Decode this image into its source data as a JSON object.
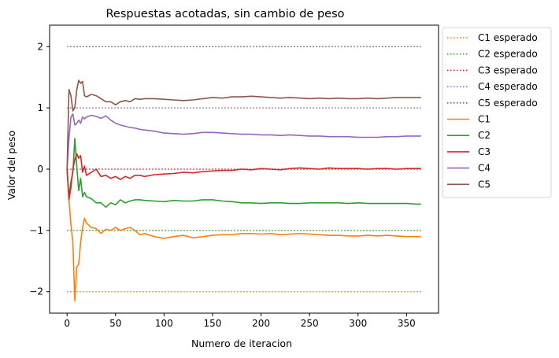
{
  "chart_data": {
    "type": "line",
    "title": "Respuestas acotadas, sin cambio de peso",
    "xlabel": "Numero de iteracion",
    "ylabel": "Valor del peso",
    "xlim": [
      -18,
      383
    ],
    "ylim": [
      -2.35,
      2.35
    ],
    "x_ticks": [
      0,
      50,
      100,
      150,
      200,
      250,
      300,
      350
    ],
    "y_ticks": [
      -2,
      -1,
      0,
      1,
      2
    ],
    "grid": false,
    "legend_position": "outside-top-right",
    "colors": {
      "C1": "#ff7f0e",
      "C2": "#2ca02c",
      "C3": "#d62728",
      "C4": "#9467bd",
      "C5": "#8c564b"
    },
    "expected": [
      {
        "name": "C1 esperado",
        "color": "#ff7f0e",
        "x": [
          0,
          365
        ],
        "values": [
          -2,
          -2
        ]
      },
      {
        "name": "C2 esperado",
        "color": "#2ca02c",
        "x": [
          0,
          365
        ],
        "values": [
          -1,
          -1
        ]
      },
      {
        "name": "C3 esperado",
        "color": "#d62728",
        "x": [
          0,
          365
        ],
        "values": [
          0,
          0
        ]
      },
      {
        "name": "C4 esperado",
        "color": "#9467bd",
        "x": [
          0,
          365
        ],
        "values": [
          1,
          1
        ]
      },
      {
        "name": "C5 esperado",
        "color": "#8c564b",
        "x": [
          0,
          365
        ],
        "values": [
          2,
          2
        ]
      }
    ],
    "series": [
      {
        "name": "C1",
        "color": "#ff7f0e",
        "x": [
          0,
          2,
          4,
          6,
          8,
          10,
          12,
          14,
          16,
          18,
          20,
          25,
          30,
          35,
          40,
          45,
          50,
          55,
          60,
          65,
          70,
          75,
          80,
          90,
          100,
          110,
          120,
          130,
          140,
          150,
          160,
          170,
          180,
          190,
          200,
          210,
          220,
          230,
          240,
          250,
          260,
          270,
          280,
          290,
          300,
          310,
          320,
          330,
          340,
          350,
          360,
          365
        ],
        "values": [
          0.0,
          -0.5,
          -0.9,
          -1.2,
          -2.15,
          -1.6,
          -1.55,
          -1.2,
          -0.95,
          -0.8,
          -0.88,
          -0.95,
          -0.97,
          -1.05,
          -0.98,
          -1.0,
          -0.95,
          -1.0,
          -0.97,
          -0.95,
          -1.0,
          -1.07,
          -1.05,
          -1.1,
          -1.13,
          -1.1,
          -1.08,
          -1.12,
          -1.1,
          -1.08,
          -1.07,
          -1.07,
          -1.05,
          -1.05,
          -1.06,
          -1.05,
          -1.07,
          -1.06,
          -1.05,
          -1.06,
          -1.07,
          -1.08,
          -1.08,
          -1.09,
          -1.09,
          -1.08,
          -1.09,
          -1.08,
          -1.09,
          -1.1,
          -1.1,
          -1.1
        ]
      },
      {
        "name": "C2",
        "color": "#2ca02c",
        "x": [
          0,
          2,
          4,
          6,
          8,
          10,
          12,
          14,
          16,
          18,
          20,
          25,
          30,
          35,
          40,
          45,
          50,
          55,
          60,
          65,
          70,
          75,
          80,
          90,
          100,
          110,
          120,
          130,
          140,
          150,
          160,
          170,
          180,
          190,
          200,
          210,
          220,
          230,
          240,
          250,
          260,
          270,
          280,
          290,
          300,
          310,
          320,
          330,
          340,
          350,
          360,
          365
        ],
        "values": [
          0.0,
          -0.45,
          -0.2,
          -0.05,
          0.5,
          0.05,
          -0.35,
          -0.15,
          -0.45,
          -0.38,
          -0.45,
          -0.48,
          -0.55,
          -0.55,
          -0.62,
          -0.55,
          -0.58,
          -0.5,
          -0.55,
          -0.52,
          -0.5,
          -0.5,
          -0.51,
          -0.52,
          -0.53,
          -0.51,
          -0.52,
          -0.52,
          -0.5,
          -0.5,
          -0.52,
          -0.53,
          -0.55,
          -0.55,
          -0.56,
          -0.55,
          -0.55,
          -0.56,
          -0.56,
          -0.55,
          -0.55,
          -0.55,
          -0.55,
          -0.56,
          -0.55,
          -0.56,
          -0.56,
          -0.56,
          -0.56,
          -0.56,
          -0.57,
          -0.57
        ]
      },
      {
        "name": "C3",
        "color": "#d62728",
        "x": [
          0,
          2,
          4,
          6,
          8,
          10,
          12,
          14,
          16,
          18,
          20,
          25,
          30,
          35,
          40,
          45,
          50,
          55,
          60,
          65,
          70,
          75,
          80,
          90,
          100,
          110,
          120,
          130,
          140,
          150,
          160,
          170,
          180,
          190,
          200,
          210,
          220,
          230,
          240,
          250,
          260,
          270,
          280,
          290,
          300,
          310,
          320,
          330,
          340,
          350,
          360,
          365
        ],
        "values": [
          0.0,
          -0.5,
          -0.3,
          0.0,
          0.15,
          0.25,
          0.18,
          0.22,
          -0.05,
          0.05,
          -0.1,
          -0.05,
          0.0,
          -0.12,
          -0.1,
          -0.15,
          -0.12,
          -0.17,
          -0.12,
          -0.15,
          -0.1,
          -0.1,
          -0.12,
          -0.09,
          -0.08,
          -0.07,
          -0.05,
          -0.06,
          -0.04,
          -0.03,
          -0.02,
          -0.02,
          0.0,
          -0.01,
          0.01,
          0.0,
          -0.01,
          0.01,
          0.02,
          0.01,
          0.0,
          0.02,
          0.01,
          0.01,
          0.01,
          0.0,
          0.01,
          0.01,
          0.0,
          0.01,
          0.01,
          0.01
        ]
      },
      {
        "name": "C4",
        "color": "#9467bd",
        "x": [
          0,
          2,
          4,
          6,
          8,
          10,
          12,
          14,
          16,
          18,
          20,
          25,
          30,
          35,
          40,
          45,
          50,
          55,
          60,
          65,
          70,
          75,
          80,
          90,
          100,
          110,
          120,
          130,
          140,
          150,
          160,
          170,
          180,
          190,
          200,
          210,
          220,
          230,
          240,
          250,
          260,
          270,
          280,
          290,
          300,
          310,
          320,
          330,
          340,
          350,
          360,
          365
        ],
        "values": [
          0.0,
          0.5,
          0.85,
          0.9,
          0.72,
          0.75,
          0.8,
          0.75,
          0.85,
          0.82,
          0.85,
          0.88,
          0.86,
          0.83,
          0.87,
          0.8,
          0.75,
          0.72,
          0.7,
          0.68,
          0.67,
          0.65,
          0.64,
          0.62,
          0.59,
          0.58,
          0.57,
          0.58,
          0.6,
          0.6,
          0.59,
          0.58,
          0.57,
          0.57,
          0.56,
          0.56,
          0.55,
          0.56,
          0.55,
          0.54,
          0.54,
          0.53,
          0.53,
          0.53,
          0.52,
          0.52,
          0.52,
          0.53,
          0.53,
          0.54,
          0.54,
          0.54
        ]
      },
      {
        "name": "C5",
        "color": "#8c564b",
        "x": [
          0,
          2,
          4,
          6,
          8,
          10,
          12,
          14,
          16,
          18,
          20,
          25,
          30,
          35,
          40,
          45,
          50,
          55,
          60,
          65,
          70,
          75,
          80,
          90,
          100,
          110,
          120,
          130,
          140,
          150,
          160,
          170,
          180,
          190,
          200,
          210,
          220,
          230,
          240,
          250,
          260,
          270,
          280,
          290,
          300,
          310,
          320,
          330,
          340,
          350,
          360,
          365
        ],
        "values": [
          0.0,
          1.3,
          1.2,
          0.95,
          1.0,
          1.3,
          1.45,
          1.4,
          1.43,
          1.2,
          1.18,
          1.22,
          1.2,
          1.15,
          1.1,
          1.1,
          1.05,
          1.1,
          1.12,
          1.1,
          1.15,
          1.14,
          1.15,
          1.15,
          1.14,
          1.13,
          1.12,
          1.13,
          1.15,
          1.17,
          1.16,
          1.18,
          1.18,
          1.19,
          1.18,
          1.17,
          1.16,
          1.17,
          1.16,
          1.15,
          1.16,
          1.15,
          1.16,
          1.15,
          1.15,
          1.16,
          1.15,
          1.16,
          1.17,
          1.17,
          1.17,
          1.17
        ]
      }
    ]
  }
}
